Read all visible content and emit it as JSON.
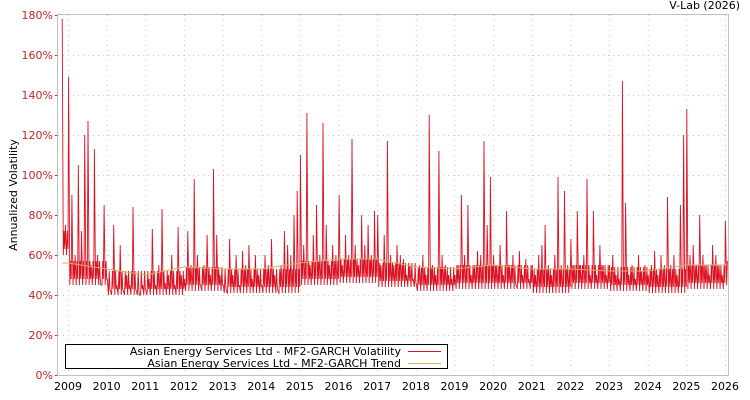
{
  "chart_data": {
    "type": "line",
    "title": "V-Lab (2026)",
    "xlabel": "",
    "ylabel": "Annualized Volatility",
    "ylim": [
      0,
      180
    ],
    "xlim": [
      2008.85,
      2026.05
    ],
    "grid": true,
    "legend_position": "bottom-left",
    "y_ticks": [
      "0%",
      "20%",
      "40%",
      "60%",
      "80%",
      "100%",
      "120%",
      "140%",
      "160%",
      "180%"
    ],
    "x_ticks": [
      "2009",
      "2010",
      "2011",
      "2012",
      "2013",
      "2014",
      "2015",
      "2016",
      "2017",
      "2018",
      "2019",
      "2020",
      "2021",
      "2022",
      "2023",
      "2024",
      "2025",
      "2026"
    ],
    "colors": {
      "volatility": "#dd1122",
      "trend": "#d4b060"
    },
    "series": [
      {
        "name": "Asian Energy Services Ltd - MF2-GARCH Volatility",
        "start": 2008.85,
        "step_years": 0.0833,
        "monthly_peaks": [
          178,
          75,
          149,
          90,
          60,
          105,
          72,
          120,
          127,
          55,
          113,
          60,
          45,
          85,
          48,
          42,
          75,
          45,
          65,
          42,
          50,
          45,
          84,
          42,
          40,
          45,
          42,
          48,
          73,
          45,
          55,
          83,
          46,
          50,
          60,
          45,
          74,
          50,
          48,
          72,
          55,
          98,
          60,
          45,
          55,
          70,
          50,
          103,
          70,
          50,
          45,
          42,
          68,
          50,
          60,
          45,
          62,
          55,
          65,
          48,
          60,
          50,
          45,
          60,
          55,
          68,
          50,
          42,
          55,
          72,
          65,
          60,
          80,
          92,
          110,
          65,
          131,
          55,
          70,
          85,
          60,
          126,
          75,
          55,
          65,
          60,
          90,
          55,
          70,
          60,
          118,
          65,
          55,
          80,
          65,
          75,
          60,
          82,
          80,
          55,
          70,
          117,
          60,
          55,
          65,
          60,
          58,
          50,
          55,
          48,
          45,
          55,
          60,
          50,
          130,
          55,
          50,
          112,
          60,
          55,
          50,
          48,
          50,
          55,
          90,
          60,
          85,
          50,
          55,
          62,
          60,
          117,
          75,
          99,
          60,
          55,
          65,
          50,
          82,
          55,
          60,
          45,
          62,
          50,
          58,
          48,
          55,
          50,
          60,
          65,
          75,
          55,
          50,
          60,
          99,
          55,
          92,
          55,
          68,
          55,
          82,
          55,
          60,
          98,
          50,
          82,
          50,
          65,
          55,
          50,
          55,
          60,
          50,
          48,
          147,
          86,
          50,
          55,
          48,
          60,
          52,
          55,
          50,
          55,
          62,
          50,
          60,
          55,
          89,
          55,
          60,
          50,
          85,
          120,
          133,
          60,
          65,
          55,
          80,
          60,
          55,
          50,
          65,
          60,
          55,
          50,
          77
        ],
        "yearly_lows": {
          "2008": 60,
          "2009": 45,
          "2010": 40,
          "2011": 40,
          "2012": 42,
          "2013": 41,
          "2014": 41,
          "2015": 45,
          "2016": 46,
          "2017": 44,
          "2018": 42,
          "2019": 43,
          "2020": 43,
          "2021": 41,
          "2022": 43,
          "2023": 42,
          "2024": 41,
          "2025": 43,
          "2026": 45
        }
      },
      {
        "name": "Asian Energy Services Ltd - MF2-GARCH Trend",
        "x": [
          2008.85,
          2009,
          2010,
          2011,
          2012,
          2013,
          2014,
          2015,
          2016,
          2017,
          2018,
          2019,
          2020,
          2021,
          2022,
          2023,
          2024,
          2025,
          2026.05
        ],
        "values": [
          56,
          56,
          53,
          50,
          54,
          53,
          53,
          56,
          58,
          58,
          54,
          53,
          55,
          53,
          53,
          52,
          52,
          55,
          55
        ]
      }
    ]
  }
}
